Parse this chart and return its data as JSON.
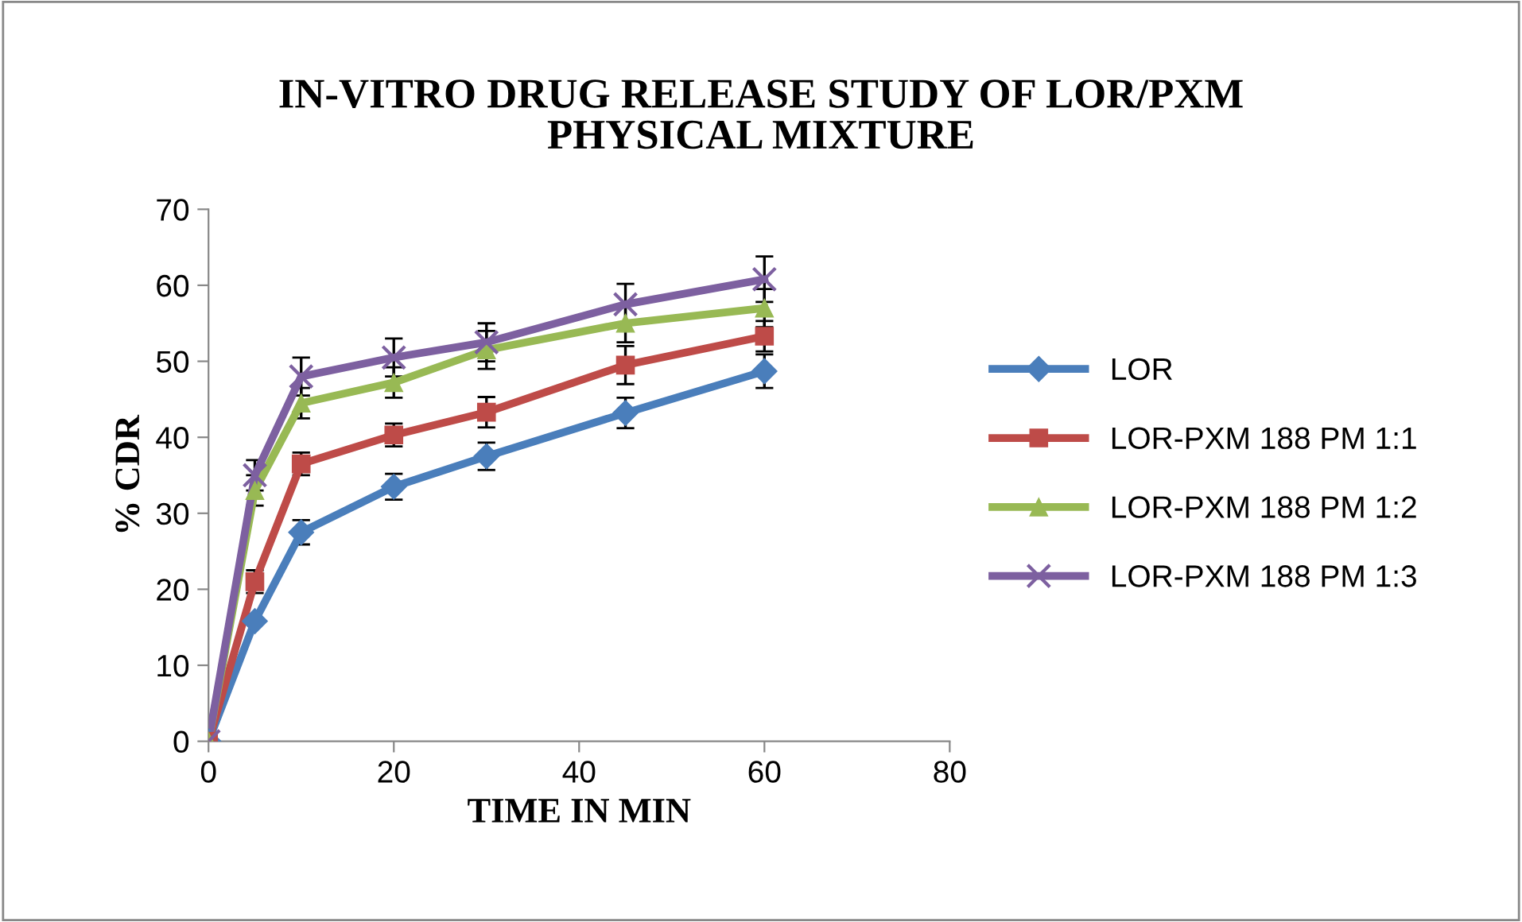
{
  "chart_data": {
    "type": "line",
    "title": "IN-VITRO DRUG RELEASE STUDY OF LOR/PXM PHYSICAL MIXTURE",
    "xlabel": "TIME IN MIN",
    "ylabel": "% CDR",
    "x": [
      0,
      5,
      10,
      20,
      30,
      45,
      60
    ],
    "series": [
      {
        "name": "LOR",
        "color": "#4a7ebb",
        "marker": "diamond",
        "values": [
          0,
          15.8,
          27.5,
          33.5,
          37.5,
          43.2,
          48.7
        ],
        "errors": [
          null,
          null,
          1.6,
          1.7,
          1.8,
          2,
          2.2
        ]
      },
      {
        "name": "LOR-PXM 188 PM 1:1",
        "color": "#be4b48",
        "marker": "square",
        "values": [
          0,
          21,
          36.5,
          40.3,
          43.3,
          49.5,
          53.3
        ],
        "errors": [
          null,
          1.5,
          1.5,
          1.5,
          2,
          2.5,
          2
        ]
      },
      {
        "name": "LOR-PXM 188 PM 1:2",
        "color": "#98b954",
        "marker": "triangle",
        "values": [
          0,
          33,
          44.5,
          47.2,
          51.5,
          55,
          57
        ],
        "errors": [
          null,
          2,
          2,
          2,
          2.5,
          2.5,
          2.5
        ]
      },
      {
        "name": "LOR-PXM 188 PM 1:3",
        "color": "#7d60a0",
        "marker": "cross",
        "values": [
          0,
          35,
          48,
          50.5,
          52.5,
          57.5,
          60.8
        ],
        "errors": [
          null,
          2,
          2.5,
          2.5,
          2.5,
          2.7,
          3
        ]
      }
    ],
    "xlim": [
      0,
      80
    ],
    "xticks": [
      0,
      20,
      40,
      60,
      80
    ],
    "ylim": [
      0,
      70
    ],
    "yticks": [
      0,
      10,
      20,
      30,
      40,
      50,
      60,
      70
    ],
    "grid": false,
    "legend": "right",
    "line_style": "solid"
  }
}
